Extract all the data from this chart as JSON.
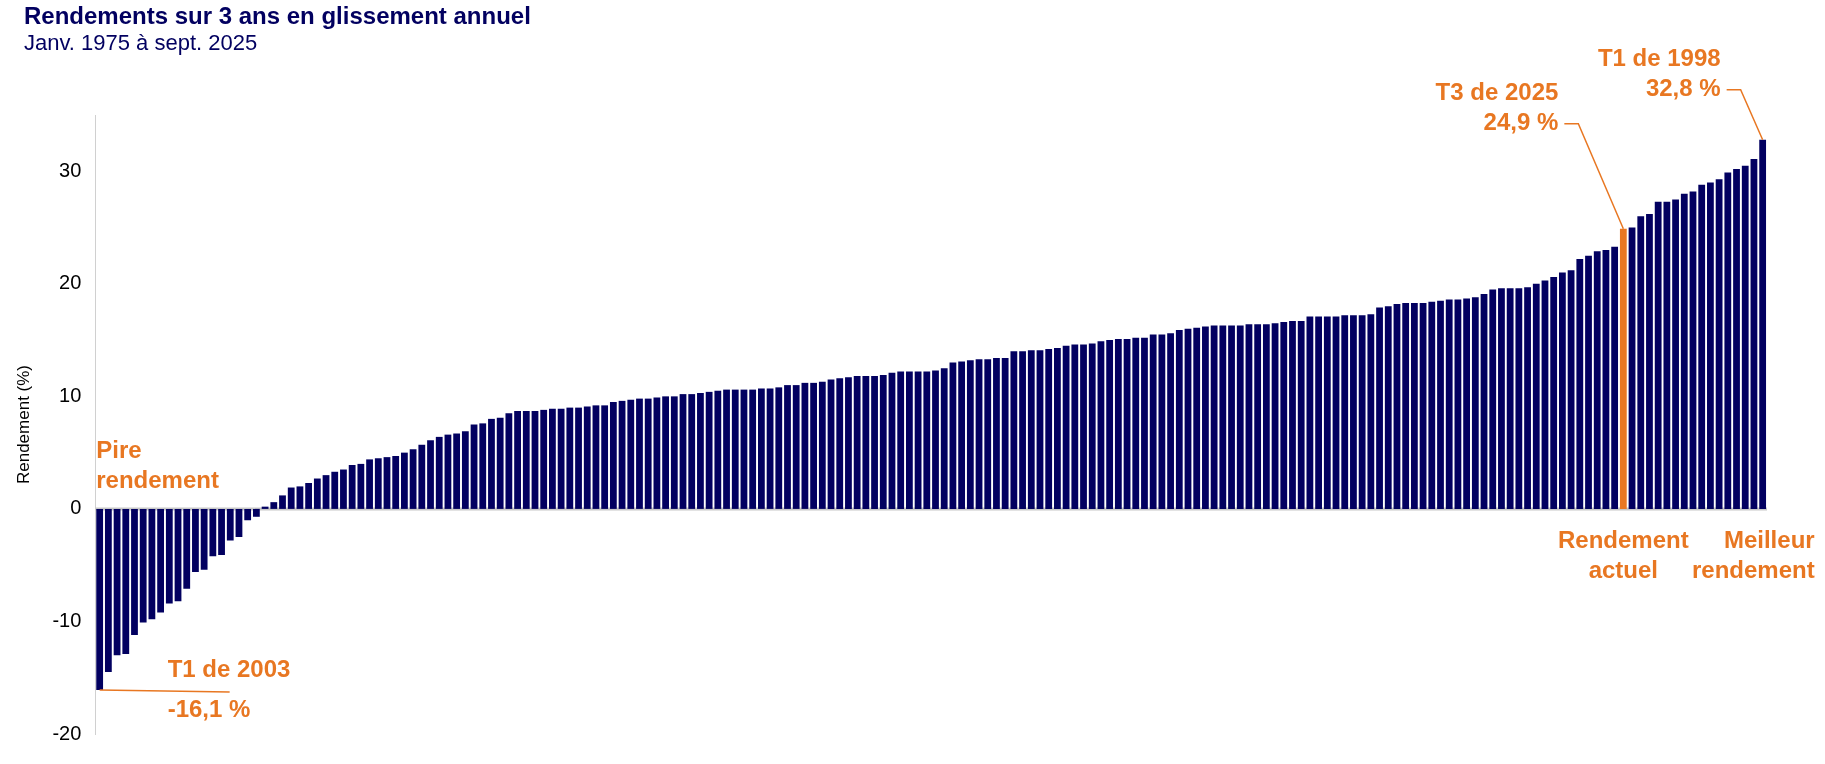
{
  "chart_data": {
    "type": "bar",
    "title": "Rendements sur 3 ans en glissement annuel",
    "subtitle": "Janv. 1975 à sept. 2025",
    "ylabel": "Rendement (%)",
    "categories": [
      null,
      null,
      null,
      null,
      null,
      null,
      null,
      null,
      null,
      null,
      null,
      null,
      null,
      null,
      null,
      null,
      null,
      null,
      null,
      null,
      null,
      null,
      null,
      null,
      null,
      null,
      null,
      null,
      null,
      null,
      null,
      null,
      null,
      null,
      null,
      null,
      null,
      null,
      null,
      null,
      null,
      null,
      null,
      null,
      null,
      null,
      null,
      null,
      null,
      null,
      null,
      null,
      null,
      null,
      null,
      null,
      null,
      null,
      null,
      null,
      null,
      null,
      null,
      null,
      null,
      null,
      null,
      null,
      null,
      null,
      null,
      null,
      null,
      null,
      null,
      null,
      null,
      null,
      null,
      null,
      null,
      null,
      null,
      null,
      null,
      null,
      null,
      null,
      null,
      null,
      null,
      null,
      null,
      null,
      null,
      null,
      null,
      null,
      null,
      null,
      null,
      null,
      null,
      null,
      null,
      null,
      null,
      null,
      null,
      null,
      null,
      null,
      null,
      null,
      null,
      null,
      null,
      null,
      null,
      null,
      null,
      null,
      null,
      null,
      null,
      null,
      null,
      null,
      null,
      null,
      null,
      null,
      null,
      null,
      null,
      null,
      null,
      null,
      null,
      null,
      null,
      null,
      null,
      null,
      null,
      null,
      null,
      null,
      null,
      null,
      null,
      null,
      null,
      null,
      null,
      null,
      null,
      null,
      null,
      null,
      null,
      null,
      null,
      null,
      null,
      null,
      null,
      null,
      null,
      null,
      null,
      null,
      null,
      null,
      null,
      null,
      null,
      null,
      null,
      null,
      null,
      null,
      null,
      null,
      null,
      null,
      null,
      null,
      null,
      null,
      null,
      null
    ],
    "values": [
      -16.1,
      -14.5,
      -13.0,
      -12.9,
      -11.2,
      -10.1,
      -9.8,
      -9.2,
      -8.4,
      -8.2,
      -7.1,
      -5.6,
      -5.4,
      -4.2,
      -4.1,
      -2.8,
      -2.5,
      -1.0,
      -0.7,
      0.2,
      0.6,
      1.2,
      1.9,
      2.0,
      2.3,
      2.7,
      3.0,
      3.3,
      3.5,
      3.9,
      4.0,
      4.4,
      4.5,
      4.6,
      4.7,
      5.0,
      5.3,
      5.7,
      6.1,
      6.4,
      6.6,
      6.7,
      6.9,
      7.5,
      7.6,
      8.0,
      8.1,
      8.5,
      8.7,
      8.7,
      8.7,
      8.8,
      8.9,
      8.9,
      9.0,
      9.0,
      9.1,
      9.2,
      9.2,
      9.5,
      9.6,
      9.7,
      9.8,
      9.8,
      9.9,
      10.0,
      10.0,
      10.2,
      10.2,
      10.3,
      10.4,
      10.5,
      10.6,
      10.6,
      10.6,
      10.6,
      10.7,
      10.7,
      10.8,
      11.0,
      11.0,
      11.2,
      11.2,
      11.3,
      11.5,
      11.6,
      11.7,
      11.8,
      11.8,
      11.8,
      11.9,
      12.1,
      12.2,
      12.2,
      12.2,
      12.2,
      12.3,
      12.5,
      13.0,
      13.1,
      13.2,
      13.3,
      13.3,
      13.4,
      13.4,
      14.0,
      14.0,
      14.1,
      14.1,
      14.2,
      14.3,
      14.5,
      14.6,
      14.6,
      14.7,
      14.9,
      15.0,
      15.1,
      15.1,
      15.2,
      15.2,
      15.5,
      15.5,
      15.6,
      15.9,
      16.0,
      16.1,
      16.2,
      16.3,
      16.3,
      16.3,
      16.3,
      16.4,
      16.4,
      16.4,
      16.5,
      16.6,
      16.7,
      16.7,
      17.1,
      17.1,
      17.1,
      17.1,
      17.2,
      17.2,
      17.2,
      17.3,
      17.9,
      18.0,
      18.2,
      18.3,
      18.3,
      18.3,
      18.4,
      18.5,
      18.6,
      18.6,
      18.7,
      18.8,
      19.1,
      19.5,
      19.6,
      19.6,
      19.6,
      19.7,
      20.0,
      20.3,
      20.6,
      21.0,
      21.2,
      22.2,
      22.5,
      22.9,
      23.0,
      23.3,
      24.9,
      25.0,
      26.0,
      26.2,
      27.3,
      27.3,
      27.5,
      28.0,
      28.2,
      28.8,
      29.0,
      29.3,
      29.9,
      30.2,
      30.5,
      31.1,
      32.8
    ],
    "colors": [
      "#020060",
      "#020060",
      "#020060",
      "#020060",
      "#020060",
      "#020060",
      "#020060",
      "#020060",
      "#020060",
      "#020060",
      "#020060",
      "#020060",
      "#020060",
      "#020060",
      "#020060",
      "#020060",
      "#020060",
      "#020060",
      "#020060",
      "#020060",
      "#020060",
      "#020060",
      "#020060",
      "#020060",
      "#020060",
      "#020060",
      "#020060",
      "#020060",
      "#020060",
      "#020060",
      "#020060",
      "#020060",
      "#020060",
      "#020060",
      "#020060",
      "#020060",
      "#020060",
      "#020060",
      "#020060",
      "#020060",
      "#020060",
      "#020060",
      "#020060",
      "#020060",
      "#020060",
      "#020060",
      "#020060",
      "#020060",
      "#020060",
      "#020060",
      "#020060",
      "#020060",
      "#020060",
      "#020060",
      "#020060",
      "#020060",
      "#020060",
      "#020060",
      "#020060",
      "#020060",
      "#020060",
      "#020060",
      "#020060",
      "#020060",
      "#020060",
      "#020060",
      "#020060",
      "#020060",
      "#020060",
      "#020060",
      "#020060",
      "#020060",
      "#020060",
      "#020060",
      "#020060",
      "#020060",
      "#020060",
      "#020060",
      "#020060",
      "#020060",
      "#020060",
      "#020060",
      "#020060",
      "#020060",
      "#020060",
      "#020060",
      "#020060",
      "#020060",
      "#020060",
      "#020060",
      "#020060",
      "#020060",
      "#020060",
      "#020060",
      "#020060",
      "#020060",
      "#020060",
      "#020060",
      "#020060",
      "#020060",
      "#020060",
      "#020060",
      "#020060",
      "#020060",
      "#020060",
      "#020060",
      "#020060",
      "#020060",
      "#020060",
      "#020060",
      "#020060",
      "#020060",
      "#020060",
      "#020060",
      "#020060",
      "#020060",
      "#020060",
      "#020060",
      "#020060",
      "#020060",
      "#020060",
      "#020060",
      "#020060",
      "#020060",
      "#020060",
      "#020060",
      "#020060",
      "#020060",
      "#020060",
      "#020060",
      "#020060",
      "#020060",
      "#020060",
      "#020060",
      "#020060",
      "#020060",
      "#020060",
      "#020060",
      "#020060",
      "#020060",
      "#020060",
      "#020060",
      "#020060",
      "#020060",
      "#020060",
      "#020060",
      "#020060",
      "#020060",
      "#020060",
      "#020060",
      "#020060",
      "#020060",
      "#020060",
      "#020060",
      "#020060",
      "#020060",
      "#020060",
      "#020060",
      "#020060",
      "#020060",
      "#020060",
      "#020060",
      "#020060",
      "#020060",
      "#020060",
      "#020060",
      "#020060",
      "#020060",
      "#020060",
      "#020060",
      "#020060",
      "#020060",
      "#020060",
      "#020060",
      "#020060",
      "#e87722",
      "#020060",
      "#020060",
      "#020060",
      "#020060",
      "#020060",
      "#020060",
      "#020060",
      "#020060",
      "#020060",
      "#020060",
      "#020060",
      "#020060",
      "#020060",
      "#020060",
      "#020060",
      "#020060"
    ],
    "ylim": [
      -20,
      35
    ],
    "yticks": [
      -20,
      -10,
      0,
      10,
      20,
      30
    ],
    "tick_labels": "y",
    "annotations": [
      "Pire\nrendement",
      "T1 de 2003\n-16,1 %",
      "T3 de 2025\n24,9 %",
      "Rendement\nactuel",
      "T1 de 1998\n32,8 %",
      "Meilleur\nrendement"
    ]
  }
}
